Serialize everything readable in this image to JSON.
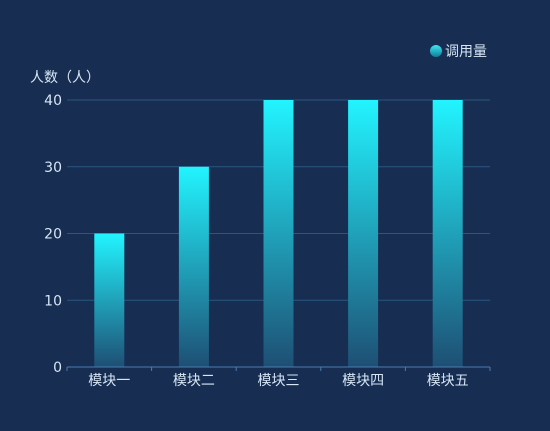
{
  "chart_data": {
    "type": "bar",
    "categories": [
      "模块一",
      "模块二",
      "模块三",
      "模块四",
      "模块五"
    ],
    "series": [
      {
        "name": "调用量",
        "values": [
          20,
          30,
          40,
          40,
          40
        ]
      }
    ],
    "ylabel": "人数（人）",
    "xlabel": "",
    "ylim": [
      0,
      40
    ],
    "yticks": [
      0,
      10,
      20,
      30,
      40
    ],
    "grid": true,
    "legend_position": "top-right",
    "colors": {
      "background": "#172d52",
      "bar_top": "#22f4ff",
      "bar_bottom": "#1e4f74",
      "grid": "#2a5680",
      "axis": "#4c7cae",
      "text": "#d6e6f5",
      "legend_marker_light": "#3fe6f0",
      "legend_marker_dark": "#0e7e9a"
    }
  }
}
